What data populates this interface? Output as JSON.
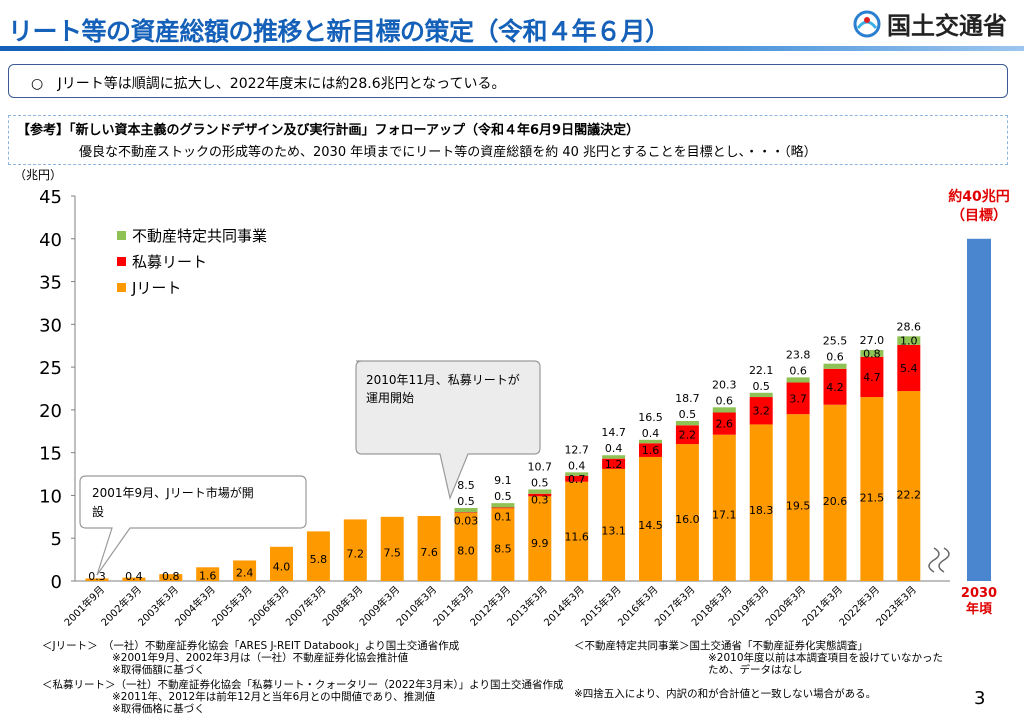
{
  "header": {
    "title": "リート等の資産総額の推移と新目標の策定（令和４年６月）",
    "logo_text": "国土交通省"
  },
  "summary": {
    "bullet": "○",
    "text": "Jリート等は順調に拡大し、2022年度末には約28.6兆円となっている。"
  },
  "reference": {
    "line1": "【参考】「新しい資本主義のグランドデザイン及び実行計画」フォローアップ（令和４年6月9日閣議決定）",
    "line2": "優良な不動産ストックの形成等のため、2030 年頃までにリート等の資産総額を約 40 兆円とすることを目標とし、・・・（略）"
  },
  "chart_data": {
    "type": "bar",
    "stacked": true,
    "y_unit_label": "（兆円）",
    "ylim": [
      0,
      45
    ],
    "yticks": [
      0,
      5,
      10,
      15,
      20,
      25,
      30,
      35,
      40,
      45
    ],
    "categories": [
      "2001年9月",
      "2002年3月",
      "2003年3月",
      "2004年3月",
      "2005年3月",
      "2006年3月",
      "2007年3月",
      "2008年3月",
      "2009年3月",
      "2010年3月",
      "2011年3月",
      "2012年3月",
      "2013年3月",
      "2014年3月",
      "2015年3月",
      "2016年3月",
      "2017年3月",
      "2018年3月",
      "2019年3月",
      "2020年3月",
      "2021年3月",
      "2022年3月",
      "2023年3月"
    ],
    "series": [
      {
        "name": "Jリート",
        "color": "#ff9900",
        "values": [
          0.3,
          0.4,
          0.8,
          1.6,
          2.4,
          4.0,
          5.8,
          7.2,
          7.5,
          7.6,
          8.0,
          8.5,
          9.9,
          11.6,
          13.1,
          14.5,
          16.0,
          17.1,
          18.3,
          19.5,
          20.6,
          21.5,
          22.2
        ],
        "labels": [
          "0.3",
          "0.4",
          "0.8",
          "1.6",
          "2.4",
          "4.0",
          "5.8",
          "7.2",
          "7.5",
          "7.6",
          "8.0",
          "8.5",
          "9.9",
          "11.6",
          "13.1",
          "14.5",
          "16.0",
          "17.1",
          "18.3",
          "19.5",
          "20.6",
          "21.5",
          "22.2"
        ]
      },
      {
        "name": "私募リート",
        "color": "#ff0000",
        "values": [
          0,
          0,
          0,
          0,
          0,
          0,
          0,
          0,
          0,
          0,
          0.03,
          0.1,
          0.3,
          0.7,
          1.2,
          1.6,
          2.2,
          2.6,
          3.2,
          3.7,
          4.2,
          4.7,
          5.4
        ],
        "labels": [
          "",
          "",
          "",
          "",
          "",
          "",
          "",
          "",
          "",
          "",
          "0.03",
          "0.1",
          "0.3",
          "0.7",
          "1.2",
          "1.6",
          "2.2",
          "2.6",
          "3.2",
          "3.7",
          "4.2",
          "4.7",
          "5.4"
        ]
      },
      {
        "name": "不動産特定共同事業",
        "color": "#8fc255",
        "values": [
          0,
          0,
          0,
          0,
          0,
          0,
          0,
          0,
          0,
          0,
          0.5,
          0.5,
          0.5,
          0.4,
          0.4,
          0.4,
          0.5,
          0.6,
          0.5,
          0.6,
          0.6,
          0.8,
          1.0
        ],
        "labels": [
          "",
          "",
          "",
          "",
          "",
          "",
          "",
          "",
          "",
          "",
          "0.5",
          "0.5",
          "0.5",
          "0.4",
          "0.4",
          "0.4",
          "0.5",
          "0.6",
          "0.5",
          "0.6",
          "0.6",
          "0.8",
          "1.0"
        ]
      }
    ],
    "totals": [
      "",
      "",
      "",
      "",
      "",
      "",
      "",
      "",
      "",
      "",
      "8.5",
      "9.1",
      "10.7",
      "12.7",
      "14.7",
      "16.5",
      "18.7",
      "20.3",
      "22.1",
      "23.8",
      "25.5",
      "27.0",
      "28.6"
    ],
    "legend_order": [
      "不動産特定共同事業",
      "私募リート",
      "Jリート"
    ],
    "legend_placement": "top-left",
    "target": {
      "value": 40,
      "color": "#4a86d0",
      "label_line1": "約40兆円",
      "label_line2": "（目標）",
      "x_label_line1": "2030",
      "x_label_line2": "年頃",
      "label_color": "#e00000"
    },
    "callouts": [
      {
        "text_line1": "2001年9月、Jリート市場が開",
        "text_line2": "設"
      },
      {
        "text_line1": "2010年11月、私募リートが",
        "text_line2": "運用開始"
      }
    ]
  },
  "notes": {
    "jreit_1": "＜Jリート＞　（一社）不動産証券化協会「ARES J-REIT Databook」より国土交通省作成",
    "jreit_2": "※2001年9月、2002年3月は（一社）不動産証券化協会推計値",
    "jreit_3": "※取得価額に基づく",
    "private_1": "＜私募リート＞（一社）不動産証券化協会「私募リート・クォータリー（2022年3月末）」より国土交通省作成",
    "private_2": "※2011年、2012年は前年12月と当年6月との中間値であり、推測値",
    "private_3": "※取得価格に基づく",
    "fudousan_1": "＜不動産特定共同事業＞国土交通省「不動産証券化実態調査」",
    "fudousan_2": "※2010年度以前は本調査項目を設けていなかった",
    "fudousan_3": "ため、データはなし",
    "rounding": "※四捨五入により、内訳の和が合計値と一致しない場合がある。"
  },
  "page_number": "3"
}
